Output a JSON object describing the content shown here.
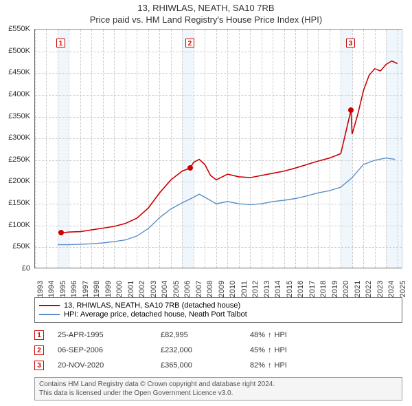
{
  "title_line1": "13, RHIWLAS, NEATH, SA10 7RB",
  "title_line2": "Price paid vs. HM Land Registry's House Price Index (HPI)",
  "chart": {
    "type": "line",
    "x_min": 1993,
    "x_max": 2025.5,
    "y_min": 0,
    "y_max": 550000,
    "y_ticks": [
      0,
      50000,
      100000,
      150000,
      200000,
      250000,
      300000,
      350000,
      400000,
      450000,
      500000,
      550000
    ],
    "y_tick_labels": [
      "£0",
      "£50K",
      "£100K",
      "£150K",
      "£200K",
      "£250K",
      "£300K",
      "£350K",
      "£400K",
      "£450K",
      "£500K",
      "£550K"
    ],
    "x_ticks": [
      1993,
      1994,
      1995,
      1996,
      1997,
      1998,
      1999,
      2000,
      2001,
      2002,
      2003,
      2004,
      2005,
      2006,
      2007,
      2008,
      2009,
      2010,
      2011,
      2012,
      2013,
      2014,
      2015,
      2016,
      2017,
      2018,
      2019,
      2020,
      2021,
      2022,
      2023,
      2024,
      2025
    ],
    "shade_bands": [
      {
        "start": 1995,
        "end": 1996
      },
      {
        "start": 2006,
        "end": 2007
      },
      {
        "start": 2020,
        "end": 2021
      },
      {
        "start": 2024,
        "end": 2025.5
      }
    ],
    "series_red": {
      "color": "#cc0000",
      "width": 1.6,
      "label": "13, RHIWLAS, NEATH, SA10 7RB (detached house)",
      "data": [
        [
          1995.3,
          82995
        ],
        [
          1996,
          85000
        ],
        [
          1997,
          86000
        ],
        [
          1998,
          90000
        ],
        [
          1999,
          94000
        ],
        [
          2000,
          98000
        ],
        [
          2001,
          105000
        ],
        [
          2002,
          117000
        ],
        [
          2003,
          140000
        ],
        [
          2004,
          175000
        ],
        [
          2005,
          205000
        ],
        [
          2006,
          225000
        ],
        [
          2006.7,
          232000
        ],
        [
          2007,
          245000
        ],
        [
          2007.5,
          252000
        ],
        [
          2008,
          240000
        ],
        [
          2008.5,
          215000
        ],
        [
          2009,
          205000
        ],
        [
          2010,
          218000
        ],
        [
          2011,
          212000
        ],
        [
          2012,
          210000
        ],
        [
          2013,
          215000
        ],
        [
          2014,
          220000
        ],
        [
          2015,
          225000
        ],
        [
          2016,
          232000
        ],
        [
          2017,
          240000
        ],
        [
          2018,
          248000
        ],
        [
          2019,
          255000
        ],
        [
          2020,
          265000
        ],
        [
          2020.9,
          365000
        ],
        [
          2021,
          310000
        ],
        [
          2021.5,
          355000
        ],
        [
          2022,
          410000
        ],
        [
          2022.5,
          445000
        ],
        [
          2023,
          460000
        ],
        [
          2023.5,
          455000
        ],
        [
          2024,
          470000
        ],
        [
          2024.5,
          478000
        ],
        [
          2025,
          472000
        ]
      ]
    },
    "series_blue": {
      "color": "#5b8fc7",
      "width": 1.4,
      "label": "HPI: Average price, detached house, Neath Port Talbot",
      "data": [
        [
          1995,
          56000
        ],
        [
          1996,
          56000
        ],
        [
          1997,
          57000
        ],
        [
          1998,
          58000
        ],
        [
          1999,
          60000
        ],
        [
          2000,
          63000
        ],
        [
          2001,
          67000
        ],
        [
          2002,
          76000
        ],
        [
          2003,
          93000
        ],
        [
          2004,
          118000
        ],
        [
          2005,
          138000
        ],
        [
          2006,
          152000
        ],
        [
          2007,
          165000
        ],
        [
          2007.5,
          172000
        ],
        [
          2008,
          165000
        ],
        [
          2009,
          150000
        ],
        [
          2010,
          155000
        ],
        [
          2011,
          150000
        ],
        [
          2012,
          148000
        ],
        [
          2013,
          150000
        ],
        [
          2014,
          155000
        ],
        [
          2015,
          158000
        ],
        [
          2016,
          162000
        ],
        [
          2017,
          168000
        ],
        [
          2018,
          175000
        ],
        [
          2019,
          180000
        ],
        [
          2020,
          188000
        ],
        [
          2021,
          210000
        ],
        [
          2022,
          240000
        ],
        [
          2023,
          250000
        ],
        [
          2024,
          255000
        ],
        [
          2024.8,
          252000
        ]
      ]
    },
    "markers": [
      {
        "n": 1,
        "x": 1995.3,
        "y": 82995,
        "box_y": 530000
      },
      {
        "n": 2,
        "x": 2006.7,
        "y": 232000,
        "box_y": 530000
      },
      {
        "n": 3,
        "x": 2020.9,
        "y": 365000,
        "box_y": 530000
      }
    ],
    "dot_color": "#cc0000",
    "grid_color": "#cccccc",
    "background": "#ffffff"
  },
  "legend": {
    "items": [
      {
        "color": "#cc0000",
        "label": "13, RHIWLAS, NEATH, SA10 7RB (detached house)"
      },
      {
        "color": "#5b8fc7",
        "label": "HPI: Average price, detached house, Neath Port Talbot"
      }
    ]
  },
  "sales": [
    {
      "n": "1",
      "date": "25-APR-1995",
      "price": "£82,995",
      "pct": "48%",
      "suffix": "HPI"
    },
    {
      "n": "2",
      "date": "06-SEP-2006",
      "price": "£232,000",
      "pct": "45%",
      "suffix": "HPI"
    },
    {
      "n": "3",
      "date": "20-NOV-2020",
      "price": "£365,000",
      "pct": "82%",
      "suffix": "HPI"
    }
  ],
  "footer_line1": "Contains HM Land Registry data © Crown copyright and database right 2024.",
  "footer_line2": "This data is licensed under the Open Government Licence v3.0."
}
